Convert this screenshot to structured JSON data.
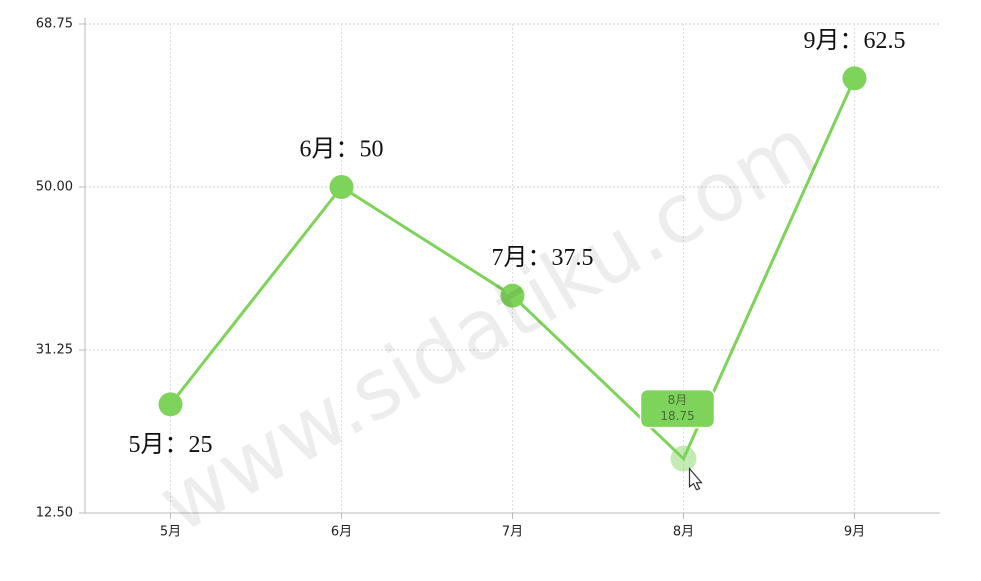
{
  "chart_data": {
    "type": "line",
    "categories": [
      "5月",
      "6月",
      "7月",
      "8月",
      "9月"
    ],
    "series": [
      {
        "color": "#7ed35a",
        "values": [
          25,
          50,
          37.5,
          18.75,
          62.5
        ],
        "value_labels": [
          "5月：25",
          "6月：50",
          "7月：37.5",
          null,
          "9月：62.5"
        ]
      }
    ],
    "ylim": [
      12.5,
      68.75
    ],
    "yticks": [
      {
        "value": 12.5,
        "label": "12.50"
      },
      {
        "value": 31.25,
        "label": "31.25"
      },
      {
        "value": 50,
        "label": "50.00"
      },
      {
        "value": 68.75,
        "label": "68.75"
      }
    ],
    "grid": true,
    "tooltip_index": 3,
    "watermark": "www.sidatiku.com"
  }
}
